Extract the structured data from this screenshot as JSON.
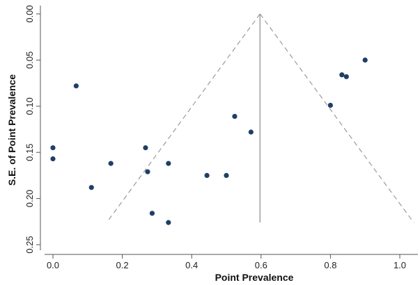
{
  "chart_data": {
    "type": "scatter",
    "title": "",
    "xlabel": "Point Prevalence",
    "ylabel": "S.E. of  Point Prevalence",
    "xlim": [
      -0.01,
      1.06
    ],
    "ylim": [
      0.0,
      0.25
    ],
    "y_reversed": true,
    "x_ticks": [
      "0.0",
      "0.2",
      "0.4",
      "0.6",
      "0.8",
      "1.0"
    ],
    "y_ticks": [
      "0.00",
      "0.05",
      "0.10",
      "0.15",
      "0.20",
      "0.25"
    ],
    "grid": false,
    "legend": "none",
    "pooled_estimate": 0.597,
    "funnel": {
      "apex": [
        0.597,
        0.0
      ],
      "left_base": [
        0.155,
        0.226
      ],
      "right_base": [
        1.04,
        0.226
      ]
    },
    "series": [
      {
        "points": [
          {
            "x": 0.0,
            "y": 0.145
          },
          {
            "x": 0.0,
            "y": 0.157
          },
          {
            "x": 0.067,
            "y": 0.078
          },
          {
            "x": 0.111,
            "y": 0.188
          },
          {
            "x": 0.167,
            "y": 0.162
          },
          {
            "x": 0.267,
            "y": 0.145
          },
          {
            "x": 0.273,
            "y": 0.171
          },
          {
            "x": 0.286,
            "y": 0.216
          },
          {
            "x": 0.333,
            "y": 0.162
          },
          {
            "x": 0.333,
            "y": 0.226
          },
          {
            "x": 0.444,
            "y": 0.175
          },
          {
            "x": 0.5,
            "y": 0.175
          },
          {
            "x": 0.524,
            "y": 0.111
          },
          {
            "x": 0.571,
            "y": 0.128
          },
          {
            "x": 0.8,
            "y": 0.099
          },
          {
            "x": 0.833,
            "y": 0.066
          },
          {
            "x": 0.846,
            "y": 0.068
          },
          {
            "x": 0.9,
            "y": 0.05
          }
        ]
      }
    ],
    "colors": {
      "point": "#1f3f66",
      "funnel": "#9a9a9a",
      "vertical_line": "#9a9a9a",
      "axis": "#555555"
    }
  }
}
